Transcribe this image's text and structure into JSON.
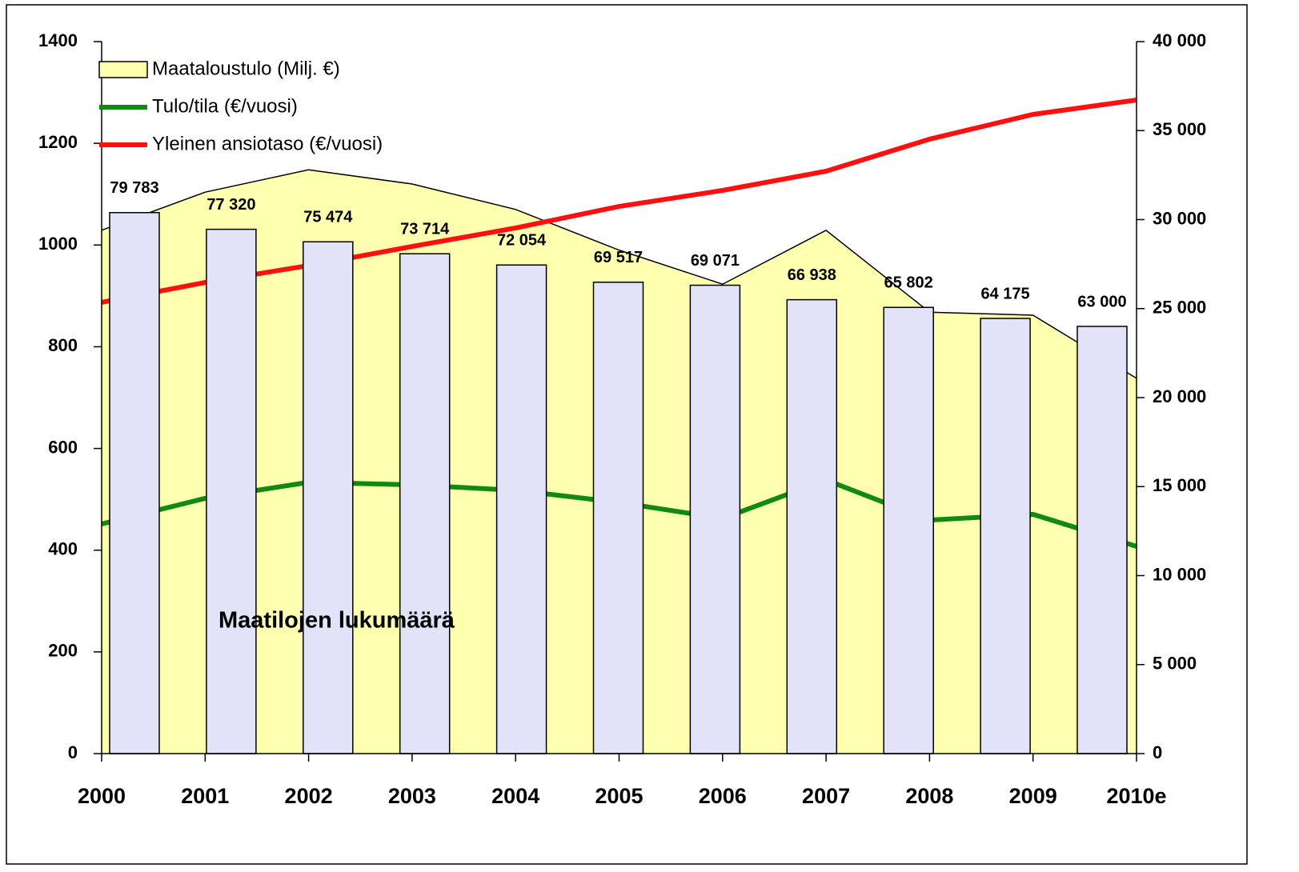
{
  "chart_data": {
    "type": "combo",
    "annotation": "Maatilojen lukumäärä",
    "categories": [
      "2000",
      "2001",
      "2002",
      "2003",
      "2004",
      "2005",
      "2006",
      "2007",
      "2008",
      "2009",
      "2010e"
    ],
    "ylim": [
      0,
      1400
    ],
    "yticks": [
      0,
      200,
      400,
      600,
      800,
      1000,
      1200,
      1400
    ],
    "y2lim": [
      0,
      40000
    ],
    "y2ticks": [
      0,
      {
        "value": 5000,
        "label": "5 000"
      },
      {
        "value": 10000,
        "label": "10 000"
      },
      {
        "value": 15000,
        "label": "15 000"
      },
      {
        "value": 20000,
        "label": "20 000"
      },
      {
        "value": 25000,
        "label": "25 000"
      },
      {
        "value": 30000,
        "label": "30 000"
      },
      {
        "value": 35000,
        "label": "35 000"
      },
      {
        "value": 40000,
        "label": "40 000"
      }
    ],
    "y3lim": [
      0,
      105000
    ],
    "series": [
      {
        "name": "Maataloustulo (Milj. €)",
        "kind": "area",
        "axis": "y",
        "color": "#ffffb0",
        "values": [
          1029,
          1104,
          1148,
          1120,
          1070,
          990,
          923,
          1029,
          868,
          862,
          738
        ]
      },
      {
        "name": "Tulo/tila (€/vuosi)",
        "kind": "line",
        "axis": "y2",
        "color": "#118a11",
        "values": [
          12900,
          14340,
          15240,
          15100,
          14790,
          14110,
          13210,
          15370,
          13120,
          13440,
          11640
        ]
      },
      {
        "name": "Yleinen ansiotaso (€/vuosi)",
        "kind": "line",
        "axis": "y2",
        "color": "#ff1010",
        "values": [
          25350,
          26470,
          27420,
          28490,
          29530,
          30740,
          31640,
          32720,
          34520,
          35910,
          36720
        ]
      },
      {
        "kind": "bar",
        "axis": "y3",
        "color": "#e2e2f8",
        "values": [
          79783,
          77320,
          75474,
          73714,
          72054,
          69517,
          69071,
          66938,
          65802,
          64175,
          63000
        ],
        "value_labels": [
          "79 783",
          "77 320",
          "75 474",
          "73 714",
          "72 054",
          "69 517",
          "69 071",
          "66 938",
          "65 802",
          "64 175",
          "63 000"
        ]
      }
    ]
  }
}
